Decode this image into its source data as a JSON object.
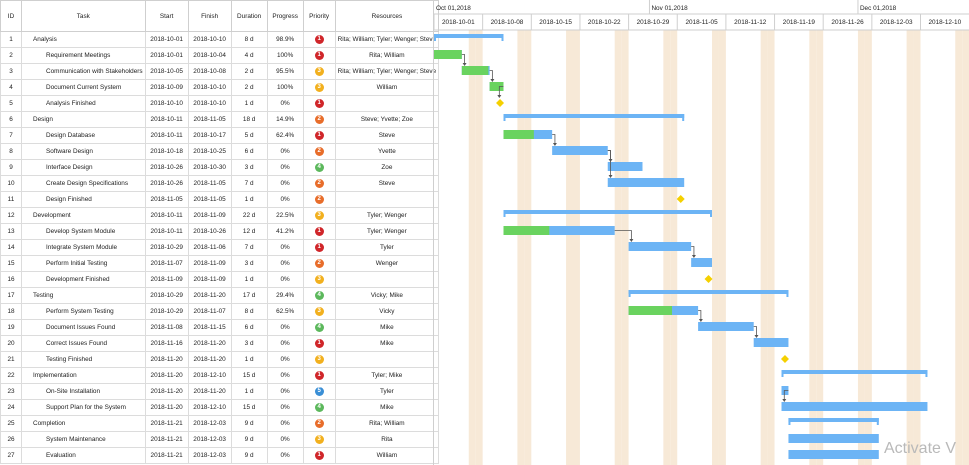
{
  "columns": {
    "id": "ID",
    "task": "Task",
    "start": "Start",
    "finish": "Finish",
    "duration": "Duration",
    "progress": "Progress",
    "priority": "Priority",
    "resources": "Resources"
  },
  "priority_colors": {
    "1": "#d0262a",
    "2": "#e86d2a",
    "3": "#f2b01e",
    "4": "#5cb85c",
    "5": "#3a8fd6"
  },
  "tasks": [
    {
      "id": "1",
      "name": "Analysis",
      "level": 0,
      "start": "2018-10-01",
      "finish": "2018-10-10",
      "duration": "8 d",
      "progress": "98.9%",
      "priority": "1",
      "resources": "Rita; William; Tyler; Wenger; Steve",
      "type": "summary",
      "pct": 98.9
    },
    {
      "id": "2",
      "name": "Requirement Meetings",
      "level": 1,
      "start": "2018-10-01",
      "finish": "2018-10-04",
      "duration": "4 d",
      "progress": "100%",
      "priority": "1",
      "resources": "Rita; William",
      "type": "task",
      "pct": 100
    },
    {
      "id": "3",
      "name": "Communication with Stakeholders",
      "level": 1,
      "start": "2018-10-05",
      "finish": "2018-10-08",
      "duration": "2 d",
      "progress": "95.5%",
      "priority": "3",
      "resources": "Rita; William; Tyler; Wenger; Steve",
      "type": "task",
      "pct": 95.5
    },
    {
      "id": "4",
      "name": "Document Current System",
      "level": 1,
      "start": "2018-10-09",
      "finish": "2018-10-10",
      "duration": "2 d",
      "progress": "100%",
      "priority": "3",
      "resources": "William",
      "type": "task",
      "pct": 100
    },
    {
      "id": "5",
      "name": "Analysis Finished",
      "level": 1,
      "start": "2018-10-10",
      "finish": "2018-10-10",
      "duration": "1 d",
      "progress": "0%",
      "priority": "1",
      "resources": "",
      "type": "milestone",
      "pct": 0
    },
    {
      "id": "6",
      "name": "Design",
      "level": 0,
      "start": "2018-10-11",
      "finish": "2018-11-05",
      "duration": "18 d",
      "progress": "14.9%",
      "priority": "2",
      "resources": "Steve; Yvette; Zoe",
      "type": "summary",
      "pct": 14.9
    },
    {
      "id": "7",
      "name": "Design Database",
      "level": 1,
      "start": "2018-10-11",
      "finish": "2018-10-17",
      "duration": "5 d",
      "progress": "62.4%",
      "priority": "1",
      "resources": "Steve",
      "type": "task",
      "pct": 62.4
    },
    {
      "id": "8",
      "name": "Software Design",
      "level": 1,
      "start": "2018-10-18",
      "finish": "2018-10-25",
      "duration": "6 d",
      "progress": "0%",
      "priority": "2",
      "resources": "Yvette",
      "type": "task",
      "pct": 0
    },
    {
      "id": "9",
      "name": "Interface Design",
      "level": 1,
      "start": "2018-10-26",
      "finish": "2018-10-30",
      "duration": "3 d",
      "progress": "0%",
      "priority": "4",
      "resources": "Zoe",
      "type": "task",
      "pct": 0
    },
    {
      "id": "10",
      "name": "Create Design Specifications",
      "level": 1,
      "start": "2018-10-26",
      "finish": "2018-11-05",
      "duration": "7 d",
      "progress": "0%",
      "priority": "2",
      "resources": "Steve",
      "type": "task",
      "pct": 0
    },
    {
      "id": "11",
      "name": "Design Finished",
      "level": 1,
      "start": "2018-11-05",
      "finish": "2018-11-05",
      "duration": "1 d",
      "progress": "0%",
      "priority": "2",
      "resources": "",
      "type": "milestone",
      "pct": 0
    },
    {
      "id": "12",
      "name": "Development",
      "level": 0,
      "start": "2018-10-11",
      "finish": "2018-11-09",
      "duration": "22 d",
      "progress": "22.5%",
      "priority": "3",
      "resources": "Tyler; Wenger",
      "type": "summary",
      "pct": 22.5
    },
    {
      "id": "13",
      "name": "Develop System Module",
      "level": 1,
      "start": "2018-10-11",
      "finish": "2018-10-26",
      "duration": "12 d",
      "progress": "41.2%",
      "priority": "1",
      "resources": "Tyler; Wenger",
      "type": "task",
      "pct": 41.2
    },
    {
      "id": "14",
      "name": "Integrate System Module",
      "level": 1,
      "start": "2018-10-29",
      "finish": "2018-11-06",
      "duration": "7 d",
      "progress": "0%",
      "priority": "1",
      "resources": "Tyler",
      "type": "task",
      "pct": 0
    },
    {
      "id": "15",
      "name": "Perform Initial Testing",
      "level": 1,
      "start": "2018-11-07",
      "finish": "2018-11-09",
      "duration": "3 d",
      "progress": "0%",
      "priority": "2",
      "resources": "Wenger",
      "type": "task",
      "pct": 0
    },
    {
      "id": "16",
      "name": "Development Finished",
      "level": 1,
      "start": "2018-11-09",
      "finish": "2018-11-09",
      "duration": "1 d",
      "progress": "0%",
      "priority": "3",
      "resources": "",
      "type": "milestone",
      "pct": 0
    },
    {
      "id": "17",
      "name": "Testing",
      "level": 0,
      "start": "2018-10-29",
      "finish": "2018-11-20",
      "duration": "17 d",
      "progress": "29.4%",
      "priority": "4",
      "resources": "Vicky; Mike",
      "type": "summary",
      "pct": 29.4
    },
    {
      "id": "18",
      "name": "Perform System Testing",
      "level": 1,
      "start": "2018-10-29",
      "finish": "2018-11-07",
      "duration": "8 d",
      "progress": "62.5%",
      "priority": "3",
      "resources": "Vicky",
      "type": "task",
      "pct": 62.5
    },
    {
      "id": "19",
      "name": "Document Issues Found",
      "level": 1,
      "start": "2018-11-08",
      "finish": "2018-11-15",
      "duration": "6 d",
      "progress": "0%",
      "priority": "4",
      "resources": "Mike",
      "type": "task",
      "pct": 0
    },
    {
      "id": "20",
      "name": "Correct Issues Found",
      "level": 1,
      "start": "2018-11-16",
      "finish": "2018-11-20",
      "duration": "3 d",
      "progress": "0%",
      "priority": "1",
      "resources": "Mike",
      "type": "task",
      "pct": 0
    },
    {
      "id": "21",
      "name": "Testing Finished",
      "level": 1,
      "start": "2018-11-20",
      "finish": "2018-11-20",
      "duration": "1 d",
      "progress": "0%",
      "priority": "3",
      "resources": "",
      "type": "milestone",
      "pct": 0
    },
    {
      "id": "22",
      "name": "Implementation",
      "level": 0,
      "start": "2018-11-20",
      "finish": "2018-12-10",
      "duration": "15 d",
      "progress": "0%",
      "priority": "1",
      "resources": "Tyler; Mike",
      "type": "summary",
      "pct": 0
    },
    {
      "id": "23",
      "name": "On-Site Installation",
      "level": 1,
      "start": "2018-11-20",
      "finish": "2018-11-20",
      "duration": "1 d",
      "progress": "0%",
      "priority": "5",
      "resources": "Tyler",
      "type": "task",
      "pct": 0
    },
    {
      "id": "24",
      "name": "Support Plan for the System",
      "level": 1,
      "start": "2018-11-20",
      "finish": "2018-12-10",
      "duration": "15 d",
      "progress": "0%",
      "priority": "4",
      "resources": "Mike",
      "type": "task",
      "pct": 0
    },
    {
      "id": "25",
      "name": "Completion",
      "level": 0,
      "start": "2018-11-21",
      "finish": "2018-12-03",
      "duration": "9 d",
      "progress": "0%",
      "priority": "2",
      "resources": "Rita; William",
      "type": "summary",
      "pct": 0
    },
    {
      "id": "26",
      "name": "System Maintenance",
      "level": 1,
      "start": "2018-11-21",
      "finish": "2018-12-03",
      "duration": "9 d",
      "progress": "0%",
      "priority": "3",
      "resources": "Rita",
      "type": "task",
      "pct": 0
    },
    {
      "id": "27",
      "name": "Evaluation",
      "level": 1,
      "start": "2018-11-21",
      "finish": "2018-12-03",
      "duration": "9 d",
      "progress": "0%",
      "priority": "1",
      "resources": "William",
      "type": "task",
      "pct": 0
    }
  ],
  "timeline": {
    "months": [
      {
        "label": "Oct 01,2018",
        "date": "2018-10-01"
      },
      {
        "label": "Nov 01,2018",
        "date": "2018-11-01"
      },
      {
        "label": "Dec 01,2018",
        "date": "2018-12-01"
      }
    ],
    "weeks": [
      "2018-10-01",
      "2018-10-08",
      "2018-10-15",
      "2018-10-22",
      "2018-10-29",
      "2018-11-05",
      "2018-11-12",
      "2018-11-19",
      "2018-11-26",
      "2018-12-03",
      "2018-12-10"
    ],
    "range_start": "2018-10-01",
    "colors": {
      "bar": "#6cb4f5",
      "progress": "#6ad35f",
      "milestone": "#f5d000",
      "weekend": "#f7e9d7",
      "arrow": "#555555"
    }
  },
  "watermark": "Activate V"
}
